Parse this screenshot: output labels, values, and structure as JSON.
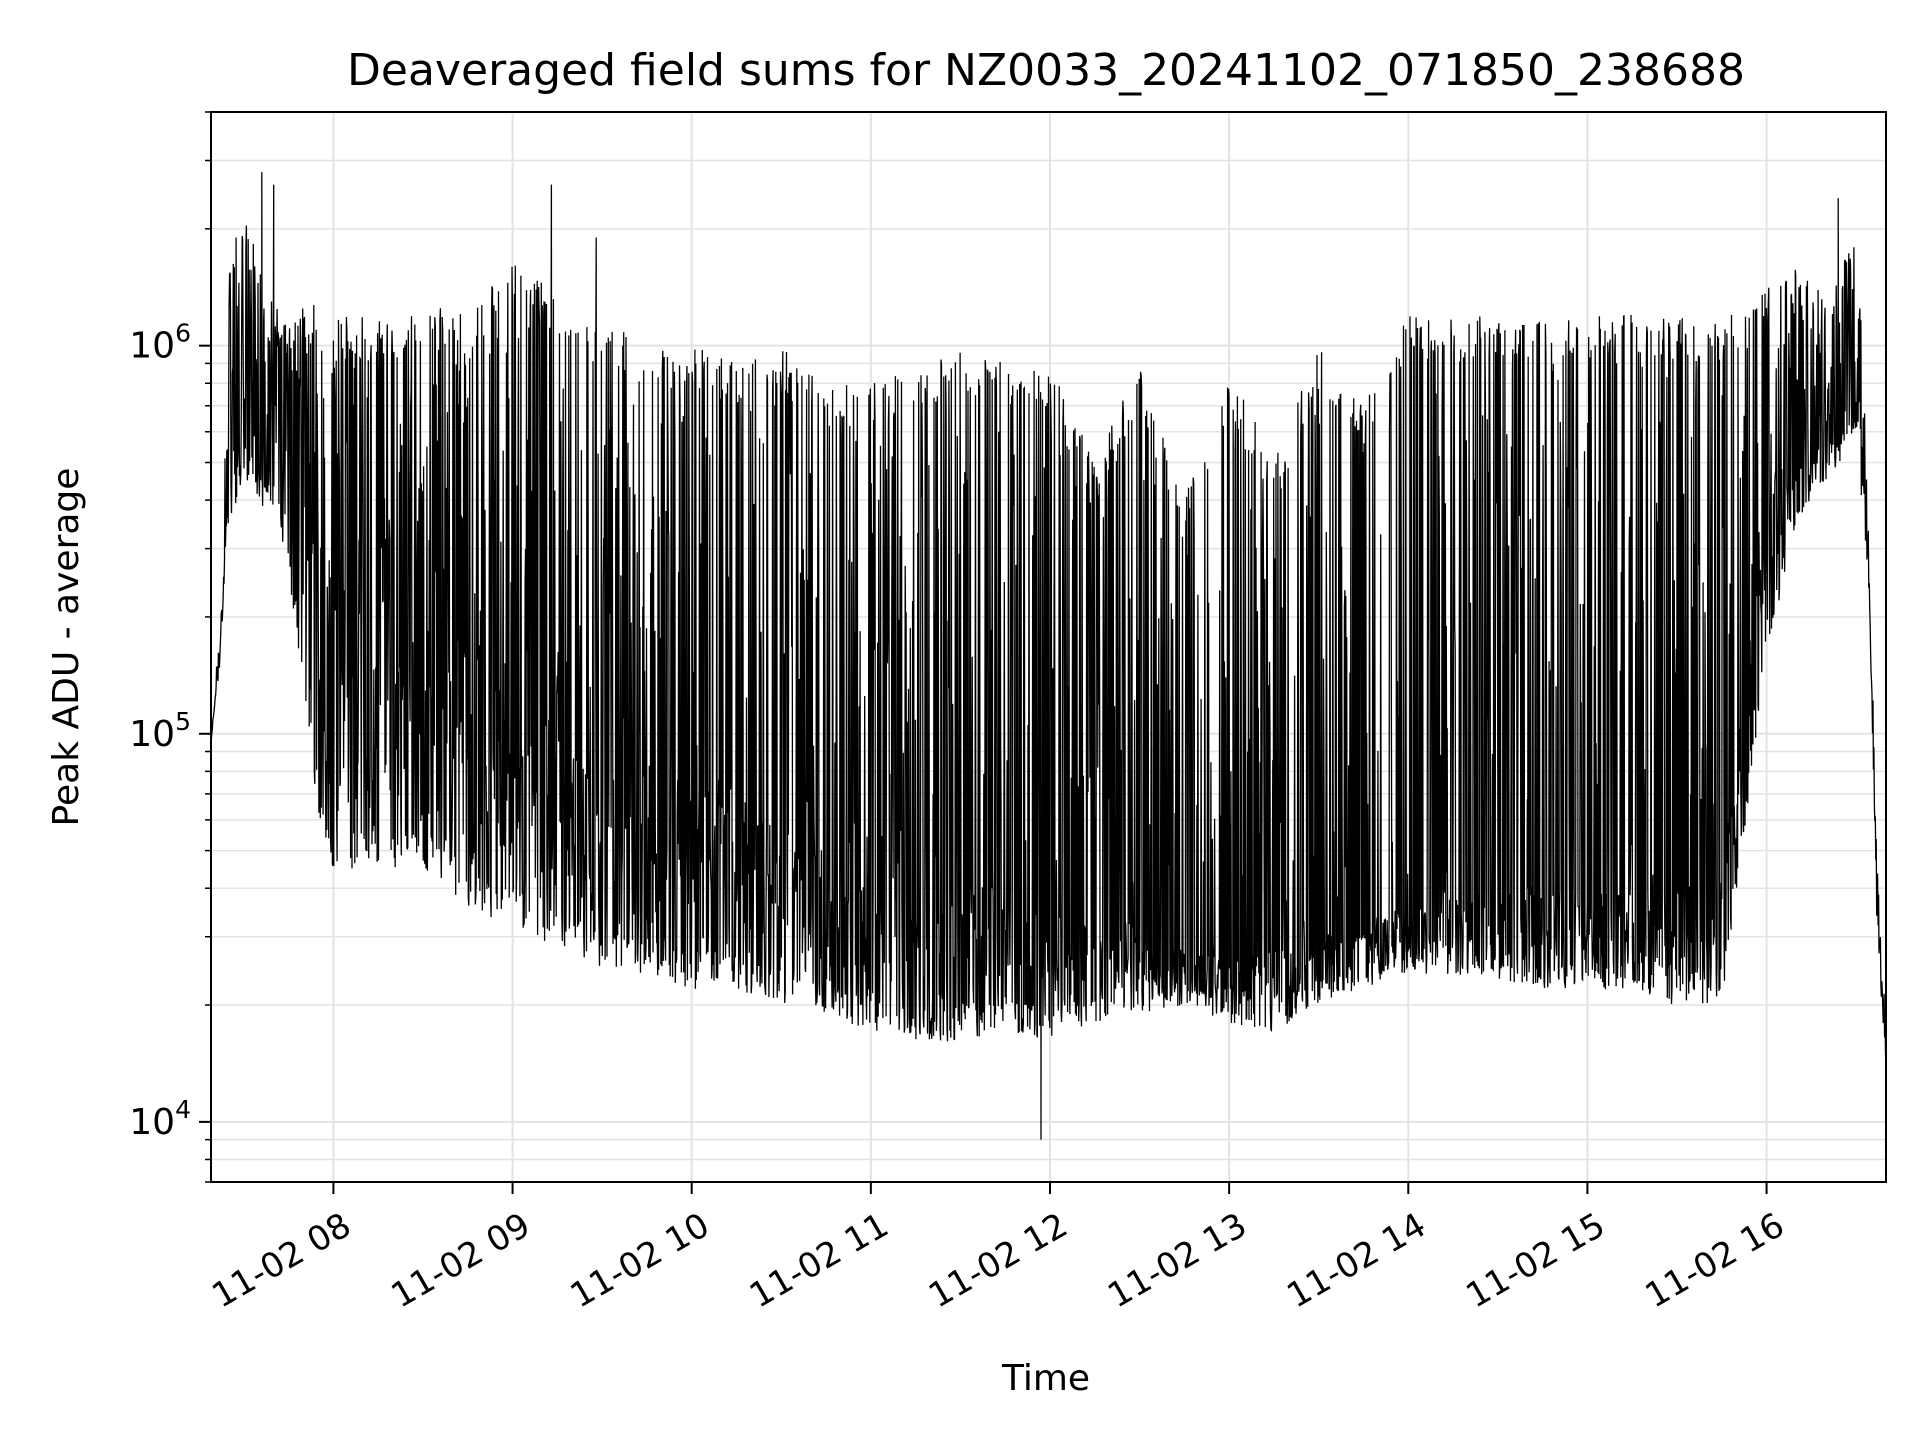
{
  "chart_data": {
    "type": "line",
    "title": "Deaveraged field sums for NZ0033_20241102_071850_238688",
    "xlabel": "Time",
    "ylabel": "Peak ADU - average",
    "y_scale": "log",
    "ylim": [
      7000,
      4000000
    ],
    "xlim": [
      "2024-11-02 07:19",
      "2024-11-02 16:40"
    ],
    "x_ticks": [
      "2024-11-02 08:00",
      "2024-11-02 09:00",
      "2024-11-02 10:00",
      "2024-11-02 11:00",
      "2024-11-02 12:00",
      "2024-11-02 13:00",
      "2024-11-02 14:00",
      "2024-11-02 15:00",
      "2024-11-02 16:00"
    ],
    "x_tick_labels": [
      "11-02 08",
      "11-02 09",
      "11-02 10",
      "11-02 11",
      "11-02 12",
      "11-02 13",
      "11-02 14",
      "11-02 15",
      "11-02 16"
    ],
    "y_ticks": [
      10000,
      100000,
      1000000
    ],
    "y_tick_labels": [
      {
        "base": "10",
        "exp": "4"
      },
      {
        "base": "10",
        "exp": "5"
      },
      {
        "base": "10",
        "exp": "6"
      }
    ],
    "grid": true,
    "line_color": "#000000",
    "series": [
      {
        "x": [
          "2024-11-02 07:19",
          "2024-11-02 07:22",
          "2024-11-02 07:25",
          "2024-11-02 07:30",
          "2024-11-02 07:35",
          "2024-11-02 07:40",
          "2024-11-02 07:45",
          "2024-11-02 07:50",
          "2024-11-02 07:55",
          "2024-11-02 08:00",
          "2024-11-02 08:10",
          "2024-11-02 08:20",
          "2024-11-02 08:30",
          "2024-11-02 08:45",
          "2024-11-02 09:00",
          "2024-11-02 09:15",
          "2024-11-02 09:30",
          "2024-11-02 09:45",
          "2024-11-02 10:00",
          "2024-11-02 10:15",
          "2024-11-02 10:30",
          "2024-11-02 10:45",
          "2024-11-02 11:00",
          "2024-11-02 11:15",
          "2024-11-02 11:30",
          "2024-11-02 11:45",
          "2024-11-02 12:00",
          "2024-11-02 12:15",
          "2024-11-02 12:30",
          "2024-11-02 12:45",
          "2024-11-02 13:00",
          "2024-11-02 13:15",
          "2024-11-02 13:30",
          "2024-11-02 13:45",
          "2024-11-02 14:00",
          "2024-11-02 14:15",
          "2024-11-02 14:30",
          "2024-11-02 14:45",
          "2024-11-02 15:00",
          "2024-11-02 15:15",
          "2024-11-02 15:30",
          "2024-11-02 15:45",
          "2024-11-02 16:00",
          "2024-11-02 16:10",
          "2024-11-02 16:20",
          "2024-11-02 16:25",
          "2024-11-02 16:30",
          "2024-11-02 16:34",
          "2024-11-02 16:37",
          "2024-11-02 16:40"
        ],
        "y": [
          95000,
          170000,
          500000,
          900000,
          750000,
          900000,
          850000,
          600000,
          350000,
          250000,
          150000,
          180000,
          160000,
          170000,
          120000,
          110000,
          90000,
          85000,
          75000,
          70000,
          60000,
          55000,
          50000,
          45000,
          42000,
          40000,
          35000,
          32000,
          30000,
          28000,
          27000,
          28000,
          30000,
          32000,
          35000,
          38000,
          40000,
          40000,
          40000,
          40000,
          40000,
          45000,
          400000,
          600000,
          800000,
          900000,
          1000000,
          300000,
          40000,
          15000
        ],
        "y_low": [
          95000,
          160000,
          350000,
          450000,
          400000,
          350000,
          250000,
          130000,
          60000,
          45000,
          45000,
          45000,
          45000,
          35000,
          32000,
          28000,
          25000,
          24000,
          22000,
          22000,
          20000,
          19000,
          17000,
          16000,
          16000,
          17000,
          16000,
          18000,
          19000,
          20000,
          18000,
          17000,
          20000,
          22000,
          24000,
          24000,
          23000,
          22000,
          22000,
          21000,
          20000,
          20000,
          150000,
          350000,
          450000,
          500000,
          600000,
          250000,
          30000,
          14000
        ],
        "y_high": [
          100000,
          180000,
          1500000,
          2500000,
          1600000,
          1300000,
          1200000,
          1300000,
          1300000,
          1200000,
          1200000,
          1200000,
          1300000,
          1200000,
          1800000,
          1300000,
          1200000,
          1000000,
          1000000,
          900000,
          1000000,
          800000,
          800000,
          900000,
          1000000,
          900000,
          900000,
          500000,
          900000,
          400000,
          900000,
          500000,
          1000000,
          700000,
          1200000,
          1200000,
          1200000,
          1200000,
          1200000,
          1200000,
          1200000,
          1200000,
          1500000,
          1600000,
          1500000,
          1500000,
          2400000,
          400000,
          50000,
          20000
        ],
        "spikes": [
          {
            "x": "2024-11-02 07:36",
            "y": 2800000
          },
          {
            "x": "2024-11-02 07:40",
            "y": 2600000
          },
          {
            "x": "2024-11-02 09:13",
            "y": 2600000
          },
          {
            "x": "2024-11-02 09:28",
            "y": 1900000
          },
          {
            "x": "2024-11-02 11:57",
            "y": 9000
          },
          {
            "x": "2024-11-02 16:24",
            "y": 2400000
          }
        ]
      }
    ]
  }
}
